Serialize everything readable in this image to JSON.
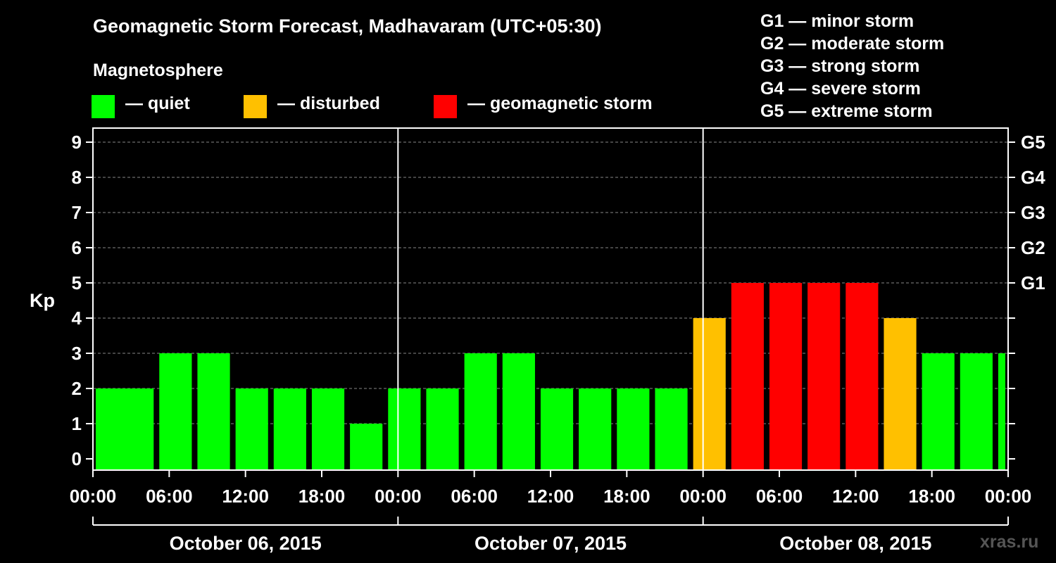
{
  "title": "Geomagnetic Storm Forecast, Madhavaram (UTC+05:30)",
  "magnetosphere_label": "Magnetosphere",
  "legend": [
    {
      "color": "#00ff00",
      "label": "— quiet"
    },
    {
      "color": "#ffc000",
      "label": "— disturbed"
    },
    {
      "color": "#ff0000",
      "label": "— geomagnetic storm"
    }
  ],
  "g_scale": [
    "G1 — minor storm",
    "G2 — moderate storm",
    "G3 — strong storm",
    "G4 — severe storm",
    "G5 — extreme storm"
  ],
  "watermark": "xras.ru",
  "chart_data": {
    "type": "bar",
    "ylabel": "Kp",
    "ylim": [
      0,
      9
    ],
    "yticks": [
      0,
      1,
      2,
      3,
      4,
      5,
      6,
      7,
      8,
      9
    ],
    "right_ticks": [
      {
        "kp": 5,
        "label": "G1"
      },
      {
        "kp": 6,
        "label": "G2"
      },
      {
        "kp": 7,
        "label": "G3"
      },
      {
        "kp": 8,
        "label": "G4"
      },
      {
        "kp": 9,
        "label": "G5"
      }
    ],
    "x_tick_labels": [
      "00:00",
      "06:00",
      "12:00",
      "18:00",
      "00:00",
      "06:00",
      "12:00",
      "18:00",
      "00:00",
      "06:00",
      "12:00",
      "18:00",
      "00:00"
    ],
    "x_tick_hours": [
      0,
      6,
      12,
      18,
      24,
      30,
      36,
      42,
      48,
      54,
      60,
      66,
      72
    ],
    "hours_total": 72,
    "days": [
      "October 06, 2015",
      "October 07, 2015",
      "October 08, 2015"
    ],
    "bar_start_hours": [
      0,
      2,
      5,
      8,
      11,
      14,
      17,
      20,
      23,
      26,
      29,
      32,
      35,
      38,
      41,
      44,
      47,
      50,
      53,
      56,
      59,
      62,
      65,
      68,
      71
    ],
    "values": [
      2,
      2,
      3,
      3,
      2,
      2,
      2,
      1,
      2,
      2,
      3,
      3,
      2,
      2,
      2,
      2,
      4,
      5,
      5,
      5,
      5,
      4,
      3,
      3,
      3
    ],
    "thresholds": {
      "disturbed": 4,
      "storm": 5
    },
    "grid": "dashed horizontal"
  }
}
